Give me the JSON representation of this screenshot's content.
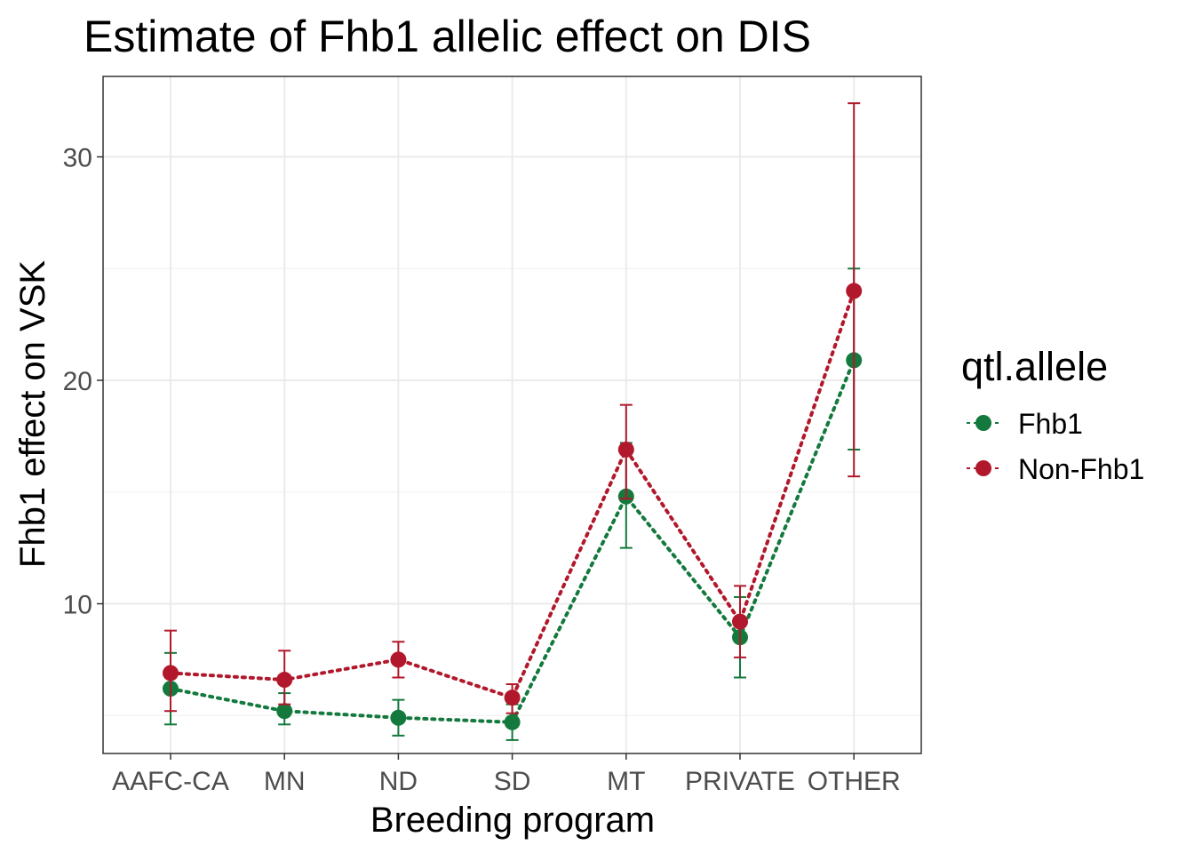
{
  "chart_data": {
    "type": "line",
    "title": "Estimate of Fhb1 allelic effect on DIS",
    "xlabel": "Breeding program",
    "ylabel": "Fhb1 effect on VSK",
    "categories": [
      "AAFC-CA",
      "MN",
      "ND",
      "SD",
      "MT",
      "PRIVATE",
      "OTHER"
    ],
    "ylim": [
      3.3,
      33.6
    ],
    "yticks": [
      10,
      20,
      30
    ],
    "grid": true,
    "legend": {
      "title": "qtl.allele",
      "position": "right"
    },
    "series": [
      {
        "name": "Fhb1",
        "color": "#13793d",
        "values": [
          6.2,
          5.2,
          4.9,
          4.7,
          14.8,
          8.5,
          20.9
        ],
        "lower": [
          4.6,
          4.6,
          4.1,
          3.9,
          12.5,
          6.7,
          16.9
        ],
        "upper": [
          7.8,
          6.0,
          5.7,
          5.5,
          17.2,
          10.3,
          25.0
        ]
      },
      {
        "name": "Non-Fhb1",
        "color": "#b2182b",
        "values": [
          6.9,
          6.6,
          7.5,
          5.8,
          16.9,
          9.2,
          24.0
        ],
        "lower": [
          5.2,
          5.5,
          6.7,
          5.1,
          14.7,
          7.6,
          15.7
        ],
        "upper": [
          8.8,
          7.9,
          8.3,
          6.4,
          18.9,
          10.8,
          32.4
        ]
      }
    ]
  }
}
